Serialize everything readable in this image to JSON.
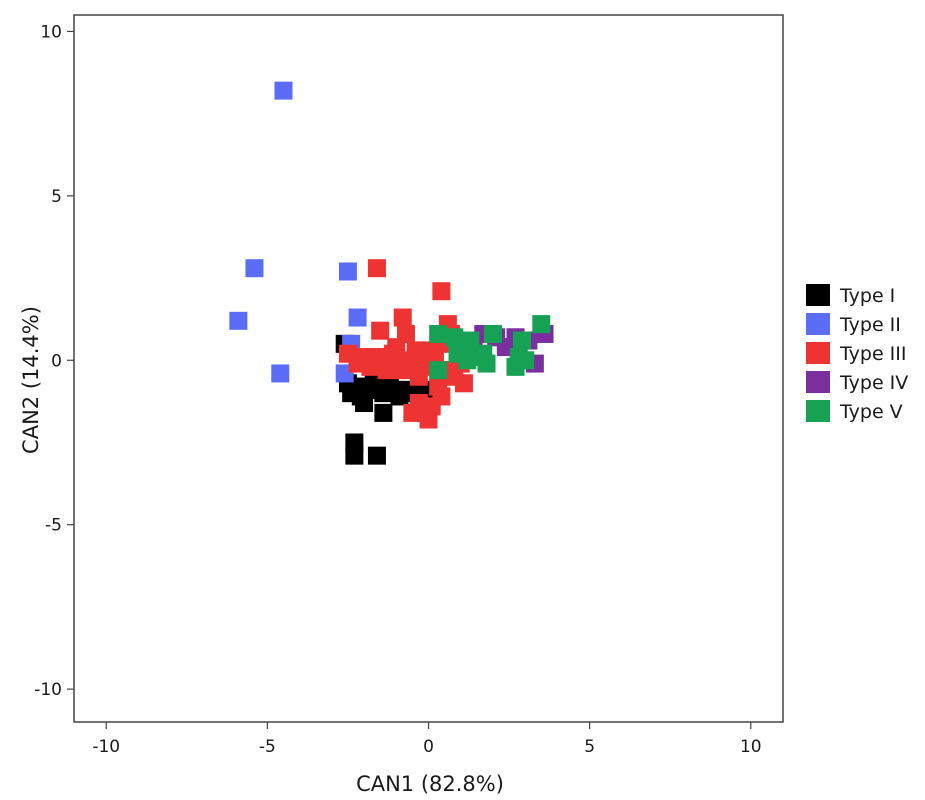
{
  "chart_data": {
    "type": "scatter",
    "xlabel": "CAN1 (82.8%)",
    "ylabel": "CAN2 (14.4%)",
    "xlim": [
      -11,
      11
    ],
    "ylim": [
      -11,
      10.5
    ],
    "xticks": [
      -10,
      -5,
      0,
      5,
      10
    ],
    "yticks": [
      -10,
      -5,
      0,
      5,
      10
    ],
    "grid": false,
    "marker": "square",
    "legend_position": "right",
    "series": [
      {
        "name": "Type I",
        "color": "#000000",
        "points": [
          [
            -2.6,
            0.5
          ],
          [
            -2.5,
            -0.7
          ],
          [
            -2.4,
            -1.0
          ],
          [
            -2.2,
            -0.8
          ],
          [
            -2.0,
            -1.3
          ],
          [
            -1.9,
            -0.9
          ],
          [
            -1.7,
            -0.6
          ],
          [
            -1.6,
            -0.9
          ],
          [
            -1.4,
            -1.0
          ],
          [
            -1.2,
            -0.8
          ],
          [
            -1.0,
            -0.9
          ],
          [
            -0.9,
            -1.1
          ],
          [
            -0.7,
            -0.9
          ],
          [
            -0.5,
            -1.0
          ],
          [
            -0.3,
            -1.2
          ],
          [
            0.0,
            -1.1
          ],
          [
            -2.3,
            -2.5
          ],
          [
            -2.3,
            -2.9
          ],
          [
            -1.6,
            -2.9
          ],
          [
            -1.4,
            -1.6
          ],
          [
            -2.1,
            -1.1
          ],
          [
            -0.2,
            -0.9
          ]
        ]
      },
      {
        "name": "Type II",
        "color": "#5B6CF7",
        "points": [
          [
            -4.5,
            8.2
          ],
          [
            -5.4,
            2.8
          ],
          [
            -5.9,
            1.2
          ],
          [
            -4.6,
            -0.4
          ],
          [
            -2.5,
            2.7
          ],
          [
            -2.2,
            1.3
          ],
          [
            -2.4,
            0.5
          ],
          [
            -2.6,
            -0.4
          ]
        ]
      },
      {
        "name": "Type III",
        "color": "#EE3333",
        "points": [
          [
            -1.6,
            2.8
          ],
          [
            0.4,
            2.1
          ],
          [
            -0.8,
            1.3
          ],
          [
            -1.5,
            0.9
          ],
          [
            -0.7,
            0.8
          ],
          [
            0.6,
            1.1
          ],
          [
            0.7,
            0.8
          ],
          [
            -2.5,
            0.2
          ],
          [
            -2.2,
            -0.1
          ],
          [
            -2.0,
            0.1
          ],
          [
            -1.8,
            -0.2
          ],
          [
            -1.5,
            0.1
          ],
          [
            -1.3,
            -0.3
          ],
          [
            -1.1,
            0.2
          ],
          [
            -0.9,
            -0.1
          ],
          [
            -0.6,
            0.0
          ],
          [
            -0.4,
            0.3
          ],
          [
            -0.2,
            -0.2
          ],
          [
            0.0,
            0.3
          ],
          [
            0.2,
            0.1
          ],
          [
            0.4,
            -0.3
          ],
          [
            0.3,
            -0.8
          ],
          [
            0.6,
            -0.5
          ],
          [
            0.8,
            -0.3
          ],
          [
            1.1,
            -0.7
          ],
          [
            -0.5,
            -1.6
          ],
          [
            -0.3,
            -1.3
          ],
          [
            0.0,
            -1.8
          ],
          [
            -0.2,
            -1.6
          ],
          [
            0.1,
            -1.4
          ],
          [
            -1.0,
            0.4
          ],
          [
            -0.3,
            -0.5
          ],
          [
            0.5,
            0.5
          ],
          [
            -0.8,
            -0.3
          ],
          [
            0.4,
            -1.1
          ],
          [
            1.0,
            -0.1
          ]
        ]
      },
      {
        "name": "Type IV",
        "color": "#7B2E9E",
        "points": [
          [
            1.7,
            0.8
          ],
          [
            2.1,
            0.7
          ],
          [
            2.7,
            0.7
          ],
          [
            3.1,
            0.6
          ],
          [
            3.6,
            0.8
          ],
          [
            3.3,
            -0.1
          ],
          [
            2.4,
            0.4
          ],
          [
            1.4,
            0.5
          ]
        ]
      },
      {
        "name": "Type V",
        "color": "#17A155",
        "points": [
          [
            0.3,
            0.8
          ],
          [
            0.8,
            0.7
          ],
          [
            1.1,
            0.3
          ],
          [
            1.3,
            0.6
          ],
          [
            1.5,
            0.1
          ],
          [
            1.7,
            0.2
          ],
          [
            2.0,
            0.8
          ],
          [
            1.8,
            -0.1
          ],
          [
            2.9,
            0.6
          ],
          [
            2.8,
            0.1
          ],
          [
            3.0,
            0.0
          ],
          [
            3.5,
            1.1
          ],
          [
            0.3,
            -0.3
          ],
          [
            0.9,
            0.2
          ],
          [
            2.7,
            -0.2
          ],
          [
            1.2,
            0.0
          ]
        ]
      }
    ]
  }
}
